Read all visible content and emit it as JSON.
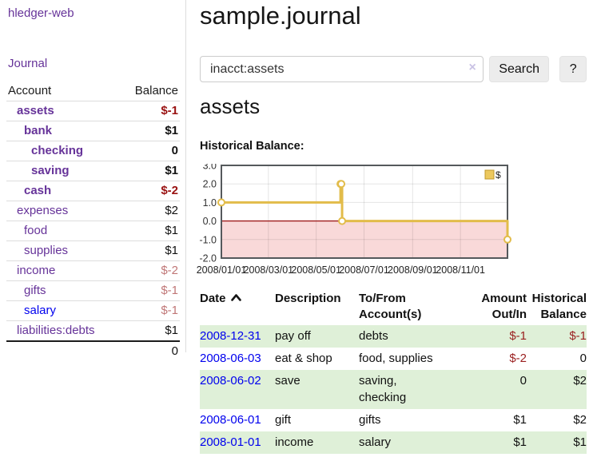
{
  "sidebar": {
    "brand": "hledger-web",
    "journal_link": "Journal",
    "accounts": {
      "headers": {
        "account": "Account",
        "balance": "Balance"
      },
      "rows": [
        {
          "name": "assets",
          "balance": "$-1",
          "level": 1,
          "emph": true
        },
        {
          "name": "bank",
          "balance": "$1",
          "level": 2,
          "emph": true
        },
        {
          "name": "checking",
          "balance": "0",
          "level": 3,
          "emph": true
        },
        {
          "name": "saving",
          "balance": "$1",
          "level": 3,
          "emph": true
        },
        {
          "name": "cash",
          "balance": "$-2",
          "level": 2,
          "emph": true
        },
        {
          "name": "expenses",
          "balance": "$2",
          "level": 1,
          "emph": false
        },
        {
          "name": "food",
          "balance": "$1",
          "level": 2,
          "emph": false
        },
        {
          "name": "supplies",
          "balance": "$1",
          "level": 2,
          "emph": false
        },
        {
          "name": "income",
          "balance": "$-2",
          "level": 1,
          "emph": false
        },
        {
          "name": "gifts",
          "balance": "$-1",
          "level": 2,
          "emph": false
        },
        {
          "name": "salary",
          "balance": "$-1",
          "level": 2,
          "emph": false,
          "fresh": true
        },
        {
          "name": "liabilities:debts",
          "balance": "$1",
          "level": 1,
          "emph": false
        }
      ],
      "total": "0"
    }
  },
  "main": {
    "title": "sample.journal",
    "search": {
      "value": "inacct:assets",
      "clear_icon": "×",
      "search_label": "Search",
      "help_label": "?"
    },
    "account_heading": "assets",
    "chart_title": "Historical Balance:"
  },
  "chart_data": {
    "type": "line",
    "interpolation": "step-after",
    "title": "Historical Balance:",
    "ylim": [
      -2.0,
      3.0
    ],
    "y_ticks": [
      3.0,
      2.0,
      1.0,
      0.0,
      -1.0,
      -2.0
    ],
    "x_range": [
      "2008-01-01",
      "2008-12-31"
    ],
    "x_ticks": [
      "2008/01/01",
      "2008/03/01",
      "2008/05/01",
      "2008/07/01",
      "2008/09/01",
      "2008/11/01"
    ],
    "legend_position": "top-right",
    "series": [
      {
        "name": "$",
        "points": [
          [
            "2008-01-01",
            1
          ],
          [
            "2008-06-01",
            2
          ],
          [
            "2008-06-02",
            2
          ],
          [
            "2008-06-03",
            0
          ],
          [
            "2008-12-31",
            -1
          ]
        ]
      }
    ],
    "colors": {
      "line": "#e2bc4a",
      "legend_swatch": "#ecc85e",
      "legend_swatch_border": "#c0992c",
      "negative_region": "#f9d9d9",
      "zero_line": "#9e1a1a"
    }
  },
  "register_table": {
    "headers": {
      "date": "Date",
      "description": "Description",
      "accounts": "To/From Account(s)",
      "amount": "Amount Out/In",
      "balance": "Historical Balance"
    },
    "rows": [
      {
        "date": "2008-12-31",
        "description": "pay off",
        "accounts": "debts",
        "amount": "$-1",
        "balance": "$-1"
      },
      {
        "date": "2008-06-03",
        "description": "eat & shop",
        "accounts": "food, supplies",
        "amount": "$-2",
        "balance": "0"
      },
      {
        "date": "2008-06-02",
        "description": "save",
        "accounts": "saving,\nchecking",
        "amount": "0",
        "balance": "$2"
      },
      {
        "date": "2008-06-01",
        "description": "gift",
        "accounts": "gifts",
        "amount": "$1",
        "balance": "$2"
      },
      {
        "date": "2008-01-01",
        "description": "income",
        "accounts": "salary",
        "amount": "$1",
        "balance": "$1"
      }
    ]
  }
}
